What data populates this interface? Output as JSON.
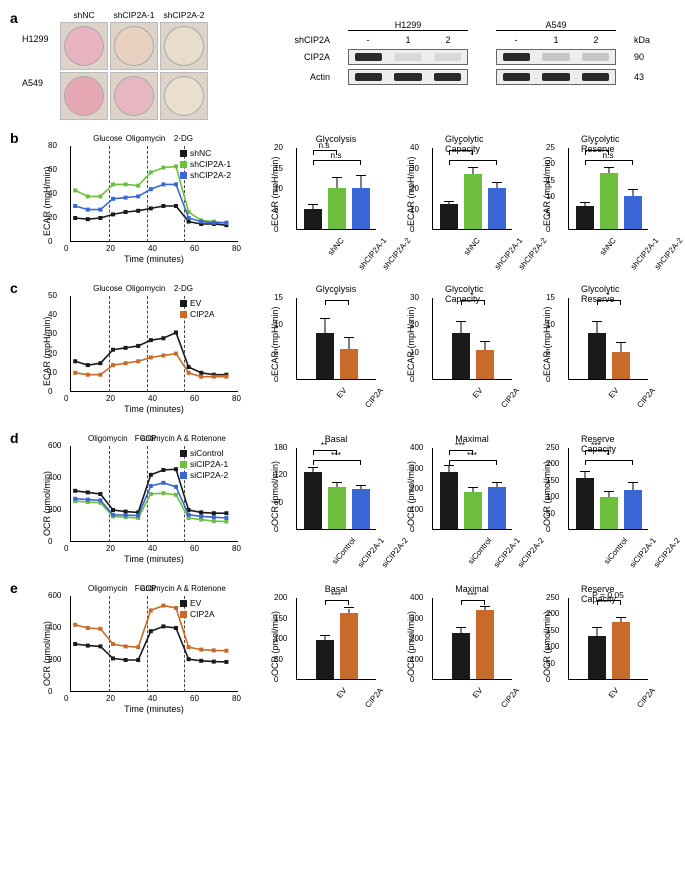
{
  "panel_a": {
    "row_labels": [
      "H1299",
      "A549"
    ],
    "col_labels": [
      "shNC",
      "shCIP2A-1",
      "shCIP2A-2"
    ],
    "well_colors": [
      [
        "#e8b3c0",
        "#e9cfbf",
        "#e8dccb"
      ],
      [
        "#e6a8b5",
        "#e6b7c0",
        "#eadfcf"
      ]
    ],
    "blot": {
      "cell_lines": [
        "H1299",
        "A549"
      ],
      "lane_header_prefix": "shCIP2A",
      "lane_labels": [
        "-",
        "1",
        "2"
      ],
      "rows": [
        {
          "name": "CIP2A",
          "kda": "90",
          "bands": {
            "H1299": [
              "#2a2a2a",
              "#d9d9d9",
              "#d9d9d9"
            ],
            "A549": [
              "#2a2a2a",
              "#c8c8c8",
              "#c8c8c8"
            ]
          }
        },
        {
          "name": "Actin",
          "kda": "43",
          "bands": {
            "H1299": [
              "#2a2a2a",
              "#2a2a2a",
              "#2a2a2a"
            ],
            "A549": [
              "#2a2a2a",
              "#2a2a2a",
              "#2a2a2a"
            ]
          }
        }
      ],
      "kda_label": "kDa"
    }
  },
  "colors": {
    "shNC_black": "#1a1a1a",
    "shCIP2A1_green": "#6fbf3f",
    "shCIP2A2_blue": "#3a66d6",
    "EV_black": "#1a1a1a",
    "CIP2A_orange": "#c76a2a",
    "siControl_black": "#1a1a1a"
  },
  "panel_b": {
    "y_axis_label": "ECAR (mpH/min)",
    "x_axis_label": "Time (minutes)",
    "y_max": 80,
    "y_tick_step": 20,
    "x_max": 80,
    "x_tick_step": 20,
    "injections": [
      "Glucose",
      "Oligomycin",
      "2-DG"
    ],
    "injection_x": [
      18,
      36,
      54
    ],
    "legend": [
      {
        "label": "shNC",
        "color": "#1a1a1a"
      },
      {
        "label": "shCIP2A-1",
        "color": "#6fbf3f"
      },
      {
        "label": "shCIP2A-2",
        "color": "#3a66d6"
      }
    ],
    "traces": {
      "shNC": {
        "color": "#1a1a1a",
        "points": [
          [
            2,
            20
          ],
          [
            8,
            19
          ],
          [
            14,
            20
          ],
          [
            20,
            23
          ],
          [
            26,
            25
          ],
          [
            32,
            26
          ],
          [
            38,
            28
          ],
          [
            44,
            30
          ],
          [
            50,
            30
          ],
          [
            56,
            17
          ],
          [
            62,
            15
          ],
          [
            68,
            15
          ],
          [
            74,
            14
          ]
        ]
      },
      "shCIP2A-1": {
        "color": "#6fbf3f",
        "points": [
          [
            2,
            43
          ],
          [
            8,
            38
          ],
          [
            14,
            38
          ],
          [
            20,
            48
          ],
          [
            26,
            48
          ],
          [
            32,
            47
          ],
          [
            38,
            58
          ],
          [
            44,
            62
          ],
          [
            50,
            63
          ],
          [
            56,
            25
          ],
          [
            62,
            18
          ],
          [
            68,
            17
          ],
          [
            74,
            16
          ]
        ]
      },
      "shCIP2A-2": {
        "color": "#3a66d6",
        "points": [
          [
            2,
            30
          ],
          [
            8,
            27
          ],
          [
            14,
            27
          ],
          [
            20,
            36
          ],
          [
            26,
            37
          ],
          [
            32,
            38
          ],
          [
            38,
            44
          ],
          [
            44,
            48
          ],
          [
            50,
            48
          ],
          [
            56,
            20
          ],
          [
            62,
            17
          ],
          [
            68,
            16
          ],
          [
            74,
            16
          ]
        ]
      }
    },
    "bars": [
      {
        "title": "Glycolysis",
        "y_max": 20,
        "y_tick_step": 5,
        "sig_pairs": [
          {
            "a": 0,
            "b": 1,
            "label": "n.s"
          },
          {
            "a": 0,
            "b": 2,
            "label": "n.s"
          }
        ],
        "values": [
          {
            "label": "shNC",
            "color": "#1a1a1a",
            "v": 5,
            "err": 0.8
          },
          {
            "label": "shCIP2A-1",
            "color": "#6fbf3f",
            "v": 10,
            "err": 2.5
          },
          {
            "label": "shCIP2A-2",
            "color": "#3a66d6",
            "v": 10,
            "err": 3
          }
        ]
      },
      {
        "title": "Glycolytic Capacity",
        "y_max": 40,
        "y_tick_step": 10,
        "sig_pairs": [
          {
            "a": 0,
            "b": 1,
            "label": "*"
          },
          {
            "a": 0,
            "b": 2,
            "label": "*"
          }
        ],
        "values": [
          {
            "label": "shNC",
            "color": "#1a1a1a",
            "v": 12,
            "err": 1.2
          },
          {
            "label": "shCIP2A-1",
            "color": "#6fbf3f",
            "v": 27,
            "err": 3
          },
          {
            "label": "shCIP2A-2",
            "color": "#3a66d6",
            "v": 20,
            "err": 2.5
          }
        ]
      },
      {
        "title": "Glycolytic Reserve",
        "y_max": 25,
        "y_tick_step": 5,
        "sig_pairs": [
          {
            "a": 0,
            "b": 1,
            "label": "*"
          },
          {
            "a": 0,
            "b": 2,
            "label": "n.s"
          }
        ],
        "values": [
          {
            "label": "shNC",
            "color": "#1a1a1a",
            "v": 7,
            "err": 1
          },
          {
            "label": "shCIP2A-1",
            "color": "#6fbf3f",
            "v": 17,
            "err": 1.5
          },
          {
            "label": "shCIP2A-2",
            "color": "#3a66d6",
            "v": 10,
            "err": 2
          }
        ]
      }
    ]
  },
  "panel_c": {
    "y_axis_label": "ECAR (mpH/min)",
    "x_axis_label": "Time (minutes)",
    "y_max": 50,
    "y_tick_step": 10,
    "x_max": 80,
    "x_tick_step": 20,
    "injections": [
      "Glucose",
      "Oligomycin",
      "2-DG"
    ],
    "injection_x": [
      18,
      36,
      54
    ],
    "legend": [
      {
        "label": "EV",
        "color": "#1a1a1a"
      },
      {
        "label": "CIP2A",
        "color": "#c76a2a"
      }
    ],
    "traces": {
      "EV": {
        "color": "#1a1a1a",
        "points": [
          [
            2,
            16
          ],
          [
            8,
            14
          ],
          [
            14,
            15
          ],
          [
            20,
            22
          ],
          [
            26,
            23
          ],
          [
            32,
            24
          ],
          [
            38,
            27
          ],
          [
            44,
            28
          ],
          [
            50,
            31
          ],
          [
            56,
            13
          ],
          [
            62,
            10
          ],
          [
            68,
            9
          ],
          [
            74,
            9
          ]
        ]
      },
      "CIP2A": {
        "color": "#c76a2a",
        "points": [
          [
            2,
            10
          ],
          [
            8,
            9
          ],
          [
            14,
            9
          ],
          [
            20,
            14
          ],
          [
            26,
            15
          ],
          [
            32,
            16
          ],
          [
            38,
            18
          ],
          [
            44,
            19
          ],
          [
            50,
            20
          ],
          [
            56,
            10
          ],
          [
            62,
            8
          ],
          [
            68,
            8
          ],
          [
            74,
            8
          ]
        ]
      }
    },
    "bars": [
      {
        "title": "Glycolysis",
        "y_max": 15,
        "y_tick_step": 5,
        "sig_pairs": [
          {
            "a": 0,
            "b": 1,
            "label": "*"
          }
        ],
        "values": [
          {
            "label": "EV",
            "color": "#1a1a1a",
            "v": 8.5,
            "err": 2.5
          },
          {
            "label": "CIP2A",
            "color": "#c76a2a",
            "v": 5.5,
            "err": 2
          }
        ]
      },
      {
        "title": "Glycolytic Capacity",
        "y_max": 30,
        "y_tick_step": 10,
        "sig_pairs": [
          {
            "a": 0,
            "b": 1,
            "label": "*"
          }
        ],
        "values": [
          {
            "label": "EV",
            "color": "#1a1a1a",
            "v": 17,
            "err": 4
          },
          {
            "label": "CIP2A",
            "color": "#c76a2a",
            "v": 10.5,
            "err": 3
          }
        ]
      },
      {
        "title": "Glycolytic Reserve",
        "y_max": 15,
        "y_tick_step": 5,
        "sig_pairs": [
          {
            "a": 0,
            "b": 1,
            "label": "*"
          }
        ],
        "values": [
          {
            "label": "EV",
            "color": "#1a1a1a",
            "v": 8.5,
            "err": 2
          },
          {
            "label": "CIP2A",
            "color": "#c76a2a",
            "v": 5,
            "err": 1.5
          }
        ]
      }
    ]
  },
  "panel_d": {
    "y_axis_label": "OCR (pmol/min)",
    "x_axis_label": "Time (minutes)",
    "y_max": 600,
    "y_tick_step": 200,
    "x_max": 80,
    "x_tick_step": 20,
    "injections": [
      "Oligomycin",
      "FCCP",
      "antimycin A\n& Rotenone"
    ],
    "injection_x": [
      18,
      36,
      54
    ],
    "legend": [
      {
        "label": "siControl",
        "color": "#1a1a1a"
      },
      {
        "label": "siCIP2A-1",
        "color": "#6fbf3f"
      },
      {
        "label": "siCIP2A-2",
        "color": "#3a66d6"
      }
    ],
    "traces": {
      "siControl": {
        "color": "#1a1a1a",
        "points": [
          [
            2,
            320
          ],
          [
            8,
            310
          ],
          [
            14,
            300
          ],
          [
            20,
            200
          ],
          [
            26,
            190
          ],
          [
            32,
            185
          ],
          [
            38,
            420
          ],
          [
            44,
            450
          ],
          [
            50,
            455
          ],
          [
            56,
            200
          ],
          [
            62,
            185
          ],
          [
            68,
            180
          ],
          [
            74,
            180
          ]
        ]
      },
      "siCIP2A-1": {
        "color": "#6fbf3f",
        "points": [
          [
            2,
            255
          ],
          [
            8,
            250
          ],
          [
            14,
            245
          ],
          [
            20,
            160
          ],
          [
            26,
            155
          ],
          [
            32,
            150
          ],
          [
            38,
            300
          ],
          [
            44,
            305
          ],
          [
            50,
            295
          ],
          [
            56,
            150
          ],
          [
            62,
            140
          ],
          [
            68,
            130
          ],
          [
            74,
            128
          ]
        ]
      },
      "siCIP2A-2": {
        "color": "#3a66d6",
        "points": [
          [
            2,
            270
          ],
          [
            8,
            265
          ],
          [
            14,
            260
          ],
          [
            20,
            170
          ],
          [
            26,
            168
          ],
          [
            32,
            165
          ],
          [
            38,
            350
          ],
          [
            44,
            370
          ],
          [
            50,
            345
          ],
          [
            56,
            170
          ],
          [
            62,
            160
          ],
          [
            68,
            155
          ],
          [
            74,
            150
          ]
        ]
      }
    },
    "bars": [
      {
        "title": "Basal",
        "y_max": 180,
        "y_tick_step": 60,
        "sig_pairs": [
          {
            "a": 0,
            "b": 1,
            "label": "**"
          },
          {
            "a": 0,
            "b": 2,
            "label": "***"
          }
        ],
        "values": [
          {
            "label": "siControl",
            "color": "#1a1a1a",
            "v": 125,
            "err": 10
          },
          {
            "label": "siCIP2A-1",
            "color": "#6fbf3f",
            "v": 92,
            "err": 9
          },
          {
            "label": "siCIP2A-2",
            "color": "#3a66d6",
            "v": 88,
            "err": 7
          }
        ]
      },
      {
        "title": "Maximal",
        "y_max": 400,
        "y_tick_step": 100,
        "sig_pairs": [
          {
            "a": 0,
            "b": 1,
            "label": "***"
          },
          {
            "a": 0,
            "b": 2,
            "label": "***"
          }
        ],
        "values": [
          {
            "label": "siControl",
            "color": "#1a1a1a",
            "v": 280,
            "err": 25
          },
          {
            "label": "siCIP2A-1",
            "color": "#6fbf3f",
            "v": 180,
            "err": 18
          },
          {
            "label": "siCIP2A-2",
            "color": "#3a66d6",
            "v": 205,
            "err": 20
          }
        ]
      },
      {
        "title": "Reserve Capacity",
        "y_max": 250,
        "y_tick_step": 50,
        "sig_pairs": [
          {
            "a": 0,
            "b": 1,
            "label": "***"
          },
          {
            "a": 0,
            "b": 2,
            "label": "*"
          }
        ],
        "values": [
          {
            "label": "siControl",
            "color": "#1a1a1a",
            "v": 155,
            "err": 18
          },
          {
            "label": "siCIP2A-1",
            "color": "#6fbf3f",
            "v": 98,
            "err": 15
          },
          {
            "label": "siCIP2A-2",
            "color": "#3a66d6",
            "v": 120,
            "err": 20
          }
        ]
      }
    ]
  },
  "panel_e": {
    "y_axis_label": "OCR (pmol/min)",
    "x_axis_label": "Time (minutes)",
    "y_max": 600,
    "y_tick_step": 200,
    "x_max": 80,
    "x_tick_step": 20,
    "injections": [
      "Oligomycin",
      "FCCP",
      "antimycin A\n& Rotenone"
    ],
    "injection_x": [
      18,
      36,
      54
    ],
    "legend": [
      {
        "label": "EV",
        "color": "#1a1a1a"
      },
      {
        "label": "CIP2A",
        "color": "#c76a2a"
      }
    ],
    "traces": {
      "EV": {
        "color": "#1a1a1a",
        "points": [
          [
            2,
            300
          ],
          [
            8,
            290
          ],
          [
            14,
            285
          ],
          [
            20,
            210
          ],
          [
            26,
            200
          ],
          [
            32,
            200
          ],
          [
            38,
            380
          ],
          [
            44,
            410
          ],
          [
            50,
            400
          ],
          [
            56,
            205
          ],
          [
            62,
            195
          ],
          [
            68,
            190
          ],
          [
            74,
            188
          ]
        ]
      },
      "CIP2A": {
        "color": "#c76a2a",
        "points": [
          [
            2,
            420
          ],
          [
            8,
            400
          ],
          [
            14,
            395
          ],
          [
            20,
            300
          ],
          [
            26,
            285
          ],
          [
            32,
            280
          ],
          [
            38,
            510
          ],
          [
            44,
            540
          ],
          [
            50,
            525
          ],
          [
            56,
            280
          ],
          [
            62,
            265
          ],
          [
            68,
            260
          ],
          [
            74,
            258
          ]
        ]
      }
    },
    "bars": [
      {
        "title": "Basal",
        "y_max": 200,
        "y_tick_step": 50,
        "sig_pairs": [
          {
            "a": 0,
            "b": 1,
            "label": "***"
          }
        ],
        "values": [
          {
            "label": "EV",
            "color": "#1a1a1a",
            "v": 95,
            "err": 10
          },
          {
            "label": "CIP2A",
            "color": "#c76a2a",
            "v": 160,
            "err": 12
          }
        ]
      },
      {
        "title": "Maximal",
        "y_max": 400,
        "y_tick_step": 100,
        "sig_pairs": [
          {
            "a": 0,
            "b": 1,
            "label": "***"
          }
        ],
        "values": [
          {
            "label": "EV",
            "color": "#1a1a1a",
            "v": 225,
            "err": 22
          },
          {
            "label": "CIP2A",
            "color": "#c76a2a",
            "v": 335,
            "err": 15
          }
        ]
      },
      {
        "title": "Reserve Capacity",
        "y_max": 250,
        "y_tick_step": 50,
        "sig_pairs": [
          {
            "a": 0,
            "b": 1,
            "label": "P = 0.05"
          }
        ],
        "values": [
          {
            "label": "EV",
            "color": "#1a1a1a",
            "v": 130,
            "err": 25
          },
          {
            "label": "CIP2A",
            "color": "#c76a2a",
            "v": 175,
            "err": 12
          }
        ]
      }
    ]
  }
}
